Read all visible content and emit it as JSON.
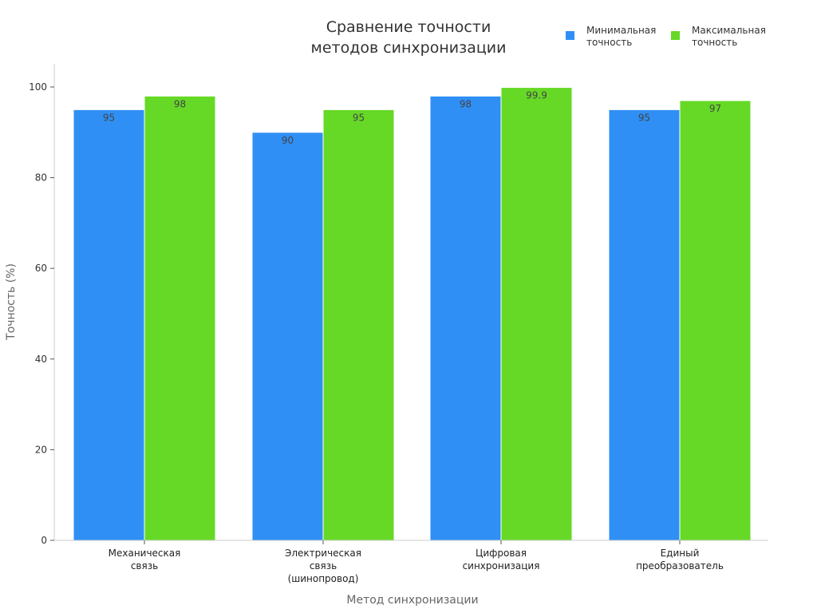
{
  "chart_data": {
    "type": "bar",
    "title": [
      "Сравнение точности",
      "методов синхронизации"
    ],
    "xlabel": "Метод синхронизации",
    "ylabel": "Точность (%)",
    "ylim": [
      0,
      105
    ],
    "yticks": [
      0,
      20,
      40,
      60,
      80,
      100
    ],
    "grid": false,
    "legend_position": "top-right",
    "categories": [
      [
        "Механическая",
        "связь"
      ],
      [
        "Электрическая",
        "связь",
        "(шинопровод)"
      ],
      [
        "Цифровая",
        "синхронизация"
      ],
      [
        "Единый",
        "преобразователь"
      ]
    ],
    "series": [
      {
        "name": [
          "Минимальная",
          "точность"
        ],
        "color": "#2f8ff5",
        "values": [
          95,
          90,
          98,
          95
        ]
      },
      {
        "name": [
          "Максимальная",
          "точность"
        ],
        "color": "#66d926",
        "values": [
          98,
          95,
          99.9,
          97
        ]
      }
    ]
  }
}
